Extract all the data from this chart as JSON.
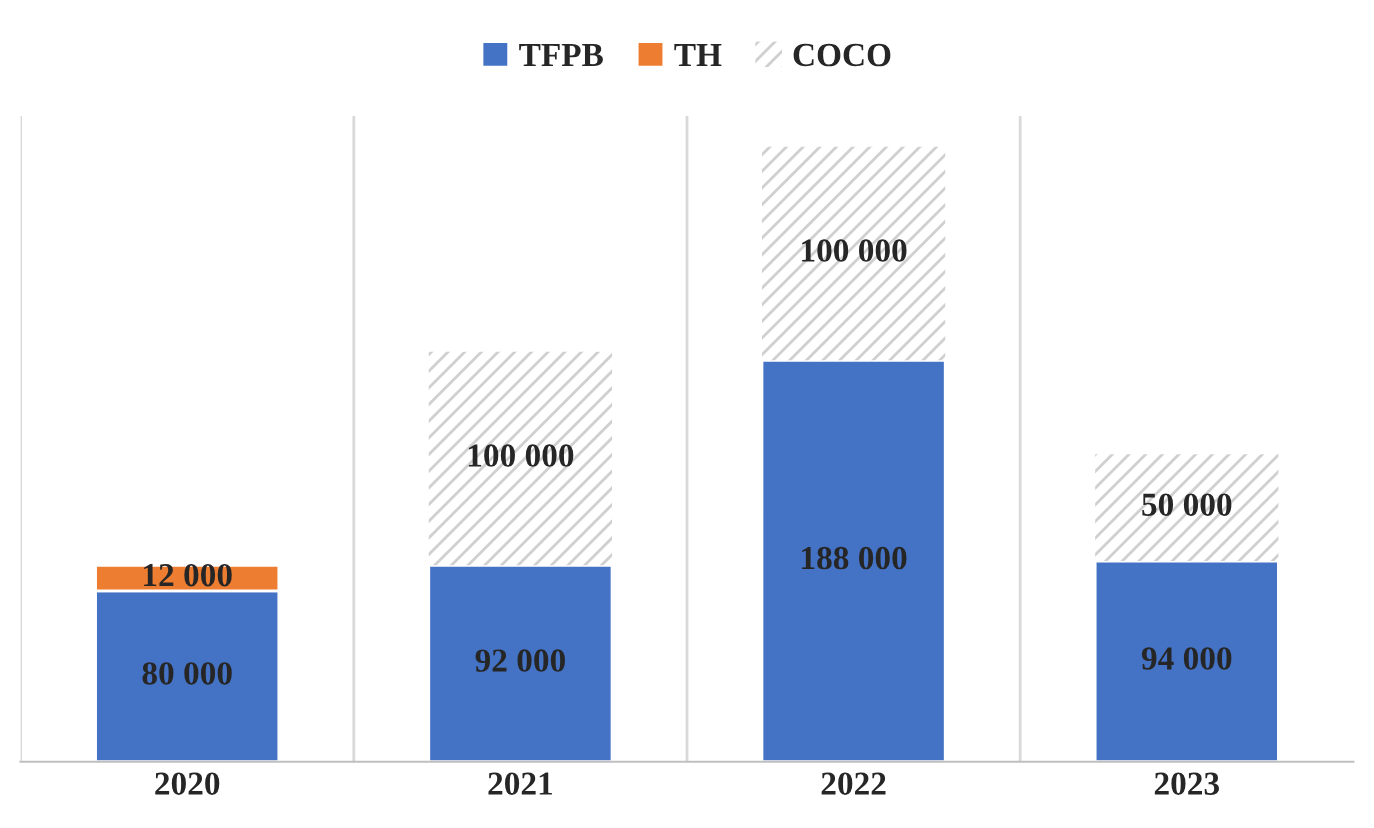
{
  "chart_data": {
    "type": "bar",
    "stacked": true,
    "categories": [
      "2020",
      "2021",
      "2022",
      "2023"
    ],
    "series": [
      {
        "name": "TFPB",
        "color": "#4472c4",
        "values": [
          80000,
          92000,
          188000,
          94000
        ],
        "value_labels": [
          "80 000",
          "92 000",
          "188 000",
          "94 000"
        ]
      },
      {
        "name": "TH",
        "color": "#ed7d31",
        "values": [
          12000,
          null,
          null,
          null
        ],
        "value_labels": [
          "12 000",
          null,
          null,
          null
        ]
      },
      {
        "name": "COCO",
        "color": "#d0d0d0",
        "values": [
          null,
          100000,
          100000,
          50000
        ],
        "value_labels": [
          null,
          "100 000",
          "100 000",
          "50 000"
        ]
      }
    ],
    "grid": "x",
    "legend": "top",
    "tick_labels": "x"
  }
}
